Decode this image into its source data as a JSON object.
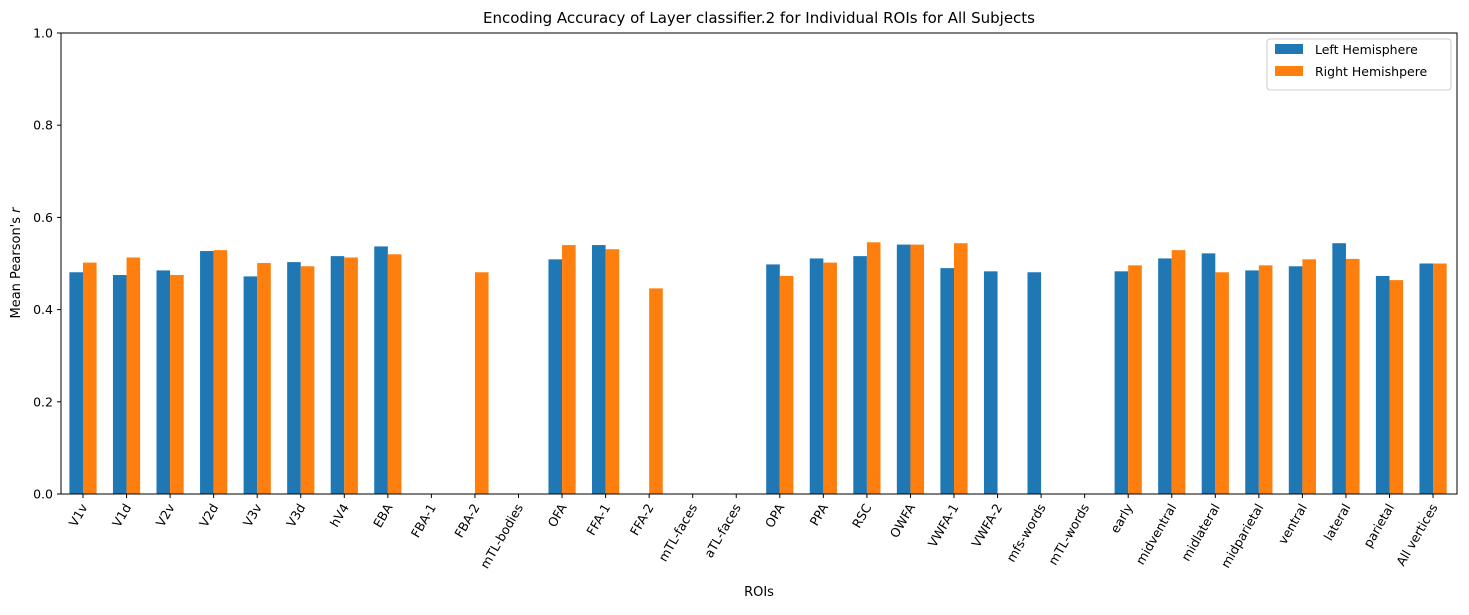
{
  "chart_data": {
    "type": "bar",
    "title": "Encoding Accuracy of Layer classifier.2 for Individual ROIs for All Subjects",
    "xlabel": "ROIs",
    "ylabel_prefix": "Mean Pearson's ",
    "ylabel_var": "r",
    "ylim": [
      0,
      1.0
    ],
    "yticks": [
      "0.0",
      "0.2",
      "0.4",
      "0.6",
      "0.8",
      "1.0"
    ],
    "grid": false,
    "legend_position": "top-right",
    "categories": [
      "V1v",
      "V1d",
      "V2v",
      "V2d",
      "V3v",
      "V3d",
      "hV4",
      "EBA",
      "FBA-1",
      "FBA-2",
      "mTL-bodies",
      "OFA",
      "FFA-1",
      "FFA-2",
      "mTL-faces",
      "aTL-faces",
      "OPA",
      "PPA",
      "RSC",
      "OWFA",
      "VWFA-1",
      "VWFA-2",
      "mfs-words",
      "mTL-words",
      "early",
      "midventral",
      "midlateral",
      "midparietal",
      "ventral",
      "lateral",
      "parietal",
      "All vertices"
    ],
    "series": [
      {
        "name": "Left Hemisphere",
        "color": "#1f77b4",
        "values": [
          0.481,
          0.475,
          0.485,
          0.527,
          0.472,
          0.503,
          0.516,
          0.537,
          null,
          null,
          null,
          0.509,
          0.54,
          null,
          null,
          null,
          0.498,
          0.511,
          0.516,
          0.541,
          0.49,
          0.483,
          0.481,
          null,
          0.483,
          0.511,
          0.522,
          0.485,
          0.494,
          0.544,
          0.473,
          0.5
        ]
      },
      {
        "name": "Right Hemishpere",
        "color": "#ff7f0e",
        "values": [
          0.502,
          0.513,
          0.475,
          0.529,
          0.501,
          0.494,
          0.513,
          0.52,
          null,
          0.481,
          null,
          0.54,
          0.531,
          0.446,
          null,
          null,
          0.473,
          0.502,
          0.546,
          0.541,
          0.544,
          null,
          null,
          null,
          0.496,
          0.529,
          0.481,
          0.496,
          0.509,
          0.51,
          0.464,
          0.5
        ]
      }
    ]
  }
}
